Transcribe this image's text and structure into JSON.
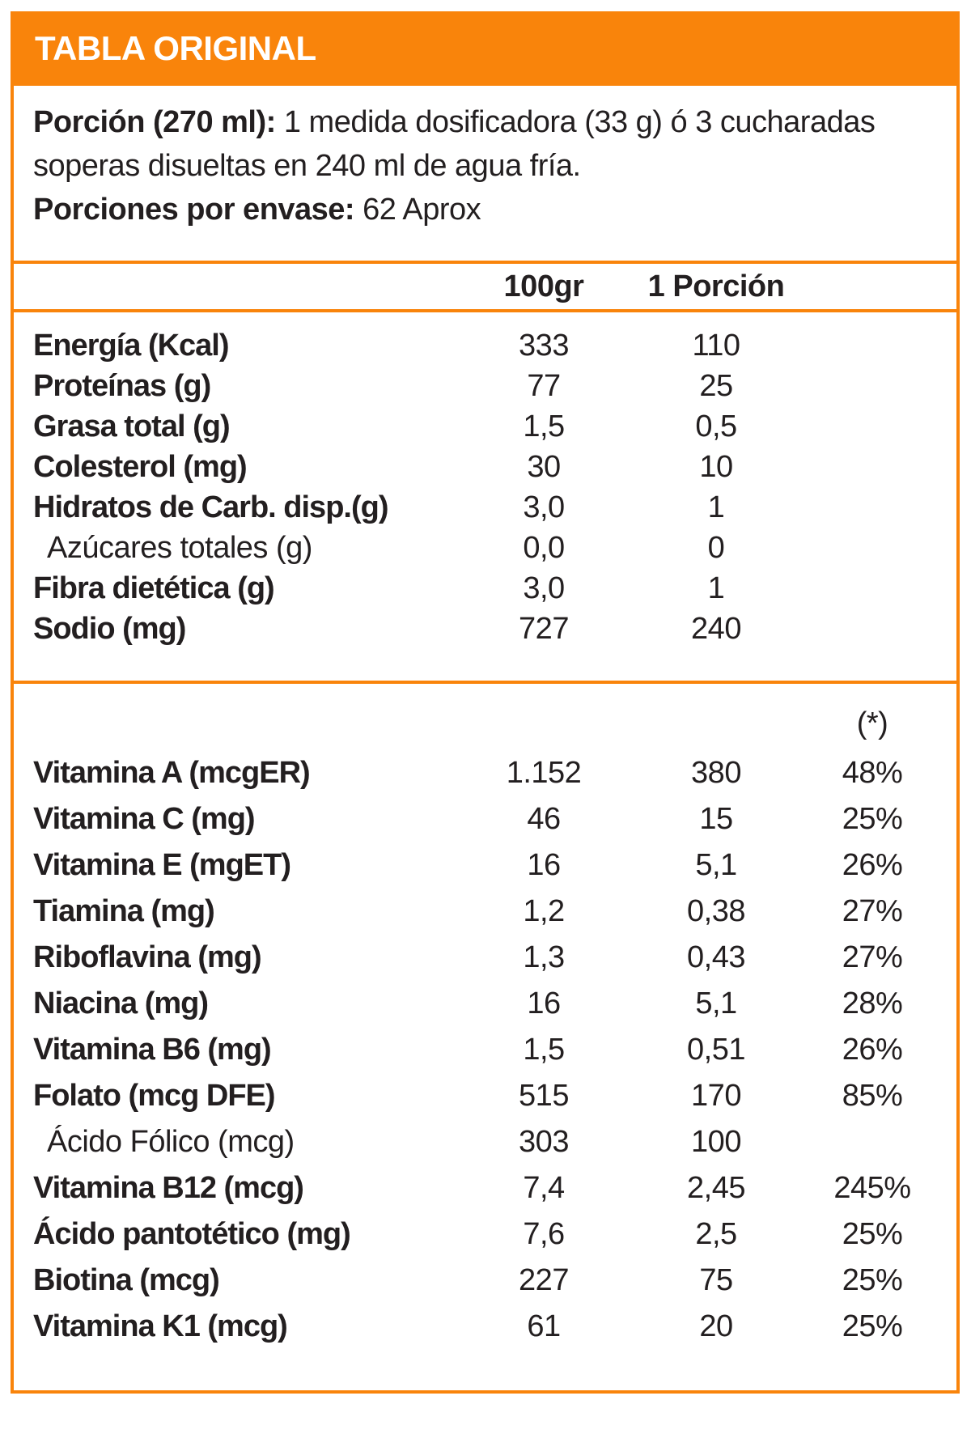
{
  "colors": {
    "accent": "#F9840B",
    "text": "#231F20"
  },
  "header": {
    "title": "TABLA ORIGINAL"
  },
  "intro": {
    "serving_label": "Porción (270 ml):",
    "serving_text_line1": "1 medida dosificadora (33 g) ó 3 cucharadas",
    "serving_text_line2": "soperas disueltas en 240 ml de agua fría.",
    "servings_label": "Porciones por envase:",
    "servings_value": "62 Aprox"
  },
  "columns": {
    "col_100g": "100gr",
    "col_portion": "1 Porción"
  },
  "sections": {
    "main": {
      "rows": [
        {
          "label": "Energía (Kcal)",
          "per100": "333",
          "portion": "110",
          "sub": false
        },
        {
          "label": "Proteínas (g)",
          "per100": "77",
          "portion": "25",
          "sub": false
        },
        {
          "label": "Grasa total (g)",
          "per100": "1,5",
          "portion": "0,5",
          "sub": false
        },
        {
          "label": "Colesterol (mg)",
          "per100": "30",
          "portion": "10",
          "sub": false
        },
        {
          "label": "Hidratos de Carb. disp.(g)",
          "per100": "3,0",
          "portion": "1",
          "sub": false
        },
        {
          "label": "Azúcares totales (g)",
          "per100": "0,0",
          "portion": "0",
          "sub": true
        },
        {
          "label": "Fibra dietética (g)",
          "per100": "3,0",
          "portion": "1",
          "sub": false
        },
        {
          "label": "Sodio (mg)",
          "per100": "727",
          "portion": "240",
          "sub": false
        }
      ]
    },
    "vitamins": {
      "header_note": "(*)",
      "rows": [
        {
          "label": "Vitamina A (mcgER)",
          "per100": "1.152",
          "portion": "380",
          "pct": "48%",
          "sub": false
        },
        {
          "label": "Vitamina C (mg)",
          "per100": "46",
          "portion": "15",
          "pct": "25%",
          "sub": false
        },
        {
          "label": "Vitamina E (mgET)",
          "per100": "16",
          "portion": "5,1",
          "pct": "26%",
          "sub": false
        },
        {
          "label": "Tiamina (mg)",
          "per100": "1,2",
          "portion": "0,38",
          "pct": "27%",
          "sub": false
        },
        {
          "label": "Riboflavina (mg)",
          "per100": "1,3",
          "portion": "0,43",
          "pct": "27%",
          "sub": false
        },
        {
          "label": "Niacina (mg)",
          "per100": "16",
          "portion": "5,1",
          "pct": "28%",
          "sub": false
        },
        {
          "label": "Vitamina B6 (mg)",
          "per100": "1,5",
          "portion": "0,51",
          "pct": "26%",
          "sub": false
        },
        {
          "label": "Folato (mcg DFE)",
          "per100": "515",
          "portion": "170",
          "pct": "85%",
          "sub": false
        },
        {
          "label": "Ácido Fólico (mcg)",
          "per100": "303",
          "portion": "100",
          "pct": "",
          "sub": true
        },
        {
          "label": "Vitamina B12 (mcg)",
          "per100": "7,4",
          "portion": "2,45",
          "pct": "245%",
          "sub": false
        },
        {
          "label": "Ácido pantotético (mg)",
          "per100": "7,6",
          "portion": "2,5",
          "pct": "25%",
          "sub": false
        },
        {
          "label": "Biotina (mcg)",
          "per100": "227",
          "portion": "75",
          "pct": "25%",
          "sub": false
        },
        {
          "label": "Vitamina K1 (mcg)",
          "per100": "61",
          "portion": "20",
          "pct": "25%",
          "sub": false
        }
      ]
    }
  }
}
